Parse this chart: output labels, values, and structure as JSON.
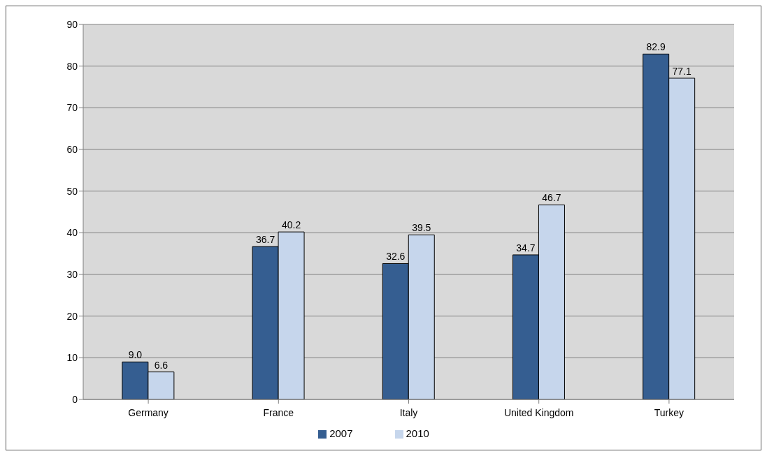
{
  "chart_data": {
    "type": "bar",
    "categories": [
      "Germany",
      "France",
      "Italy",
      "United Kingdom",
      "Turkey"
    ],
    "series": [
      {
        "name": "2007",
        "color": "#355e91",
        "values": [
          9.0,
          36.7,
          32.6,
          34.7,
          82.9
        ],
        "value_labels": [
          "9.0",
          "36.7",
          "32.6",
          "34.7",
          "82.9"
        ]
      },
      {
        "name": "2010",
        "color": "#c6d6ec",
        "values": [
          6.6,
          40.2,
          39.5,
          46.7,
          77.1
        ],
        "value_labels": [
          "6.6",
          "40.2",
          "39.5",
          "46.7",
          "77.1"
        ]
      }
    ],
    "ylim": [
      0,
      90
    ],
    "yticks": [
      0,
      10,
      20,
      30,
      40,
      50,
      60,
      70,
      80,
      90
    ],
    "grid": "y",
    "legend": "bottom"
  }
}
